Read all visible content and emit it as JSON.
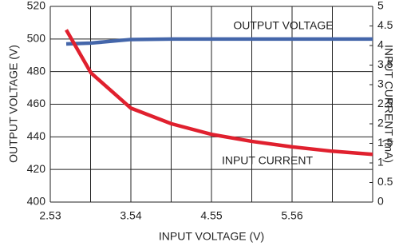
{
  "chart_data": {
    "type": "line",
    "x_label": "INPUT VOLTAGE (V)",
    "y_label": "OUTPUT VOLTAGE (V)",
    "y2_label": "INPUT CURRENT (mA)",
    "x": [
      2.73,
      3.04,
      3.54,
      4.05,
      4.55,
      5.06,
      5.56,
      6.06,
      6.57
    ],
    "series": [
      {
        "name": "OUTPUT VOLTAGE",
        "color": "#4466aa",
        "values": [
          497,
          497.5,
          499.7,
          500,
          500,
          500,
          500,
          500,
          500
        ]
      },
      {
        "name": "INPUT CURRENT",
        "color": "#e0202e",
        "axis": "y2",
        "values": [
          4.4,
          3.3,
          2.4,
          2.0,
          1.73,
          1.55,
          1.41,
          1.3,
          1.22
        ]
      }
    ],
    "xlim": [
      2.53,
      6.57
    ],
    "xticks": [
      2.53,
      3.54,
      4.55,
      5.56
    ],
    "x_minor_grid": [
      3.035,
      4.045,
      5.055,
      6.065,
      6.57
    ],
    "ylim": [
      400,
      520
    ],
    "yticks": [
      400,
      420,
      440,
      460,
      480,
      500,
      520
    ],
    "y2lim": [
      0,
      5
    ],
    "y2ticks": [
      0,
      0.5,
      1,
      1.5,
      2,
      2.5,
      3,
      3.5,
      4,
      4.5,
      5
    ],
    "grid": true
  }
}
